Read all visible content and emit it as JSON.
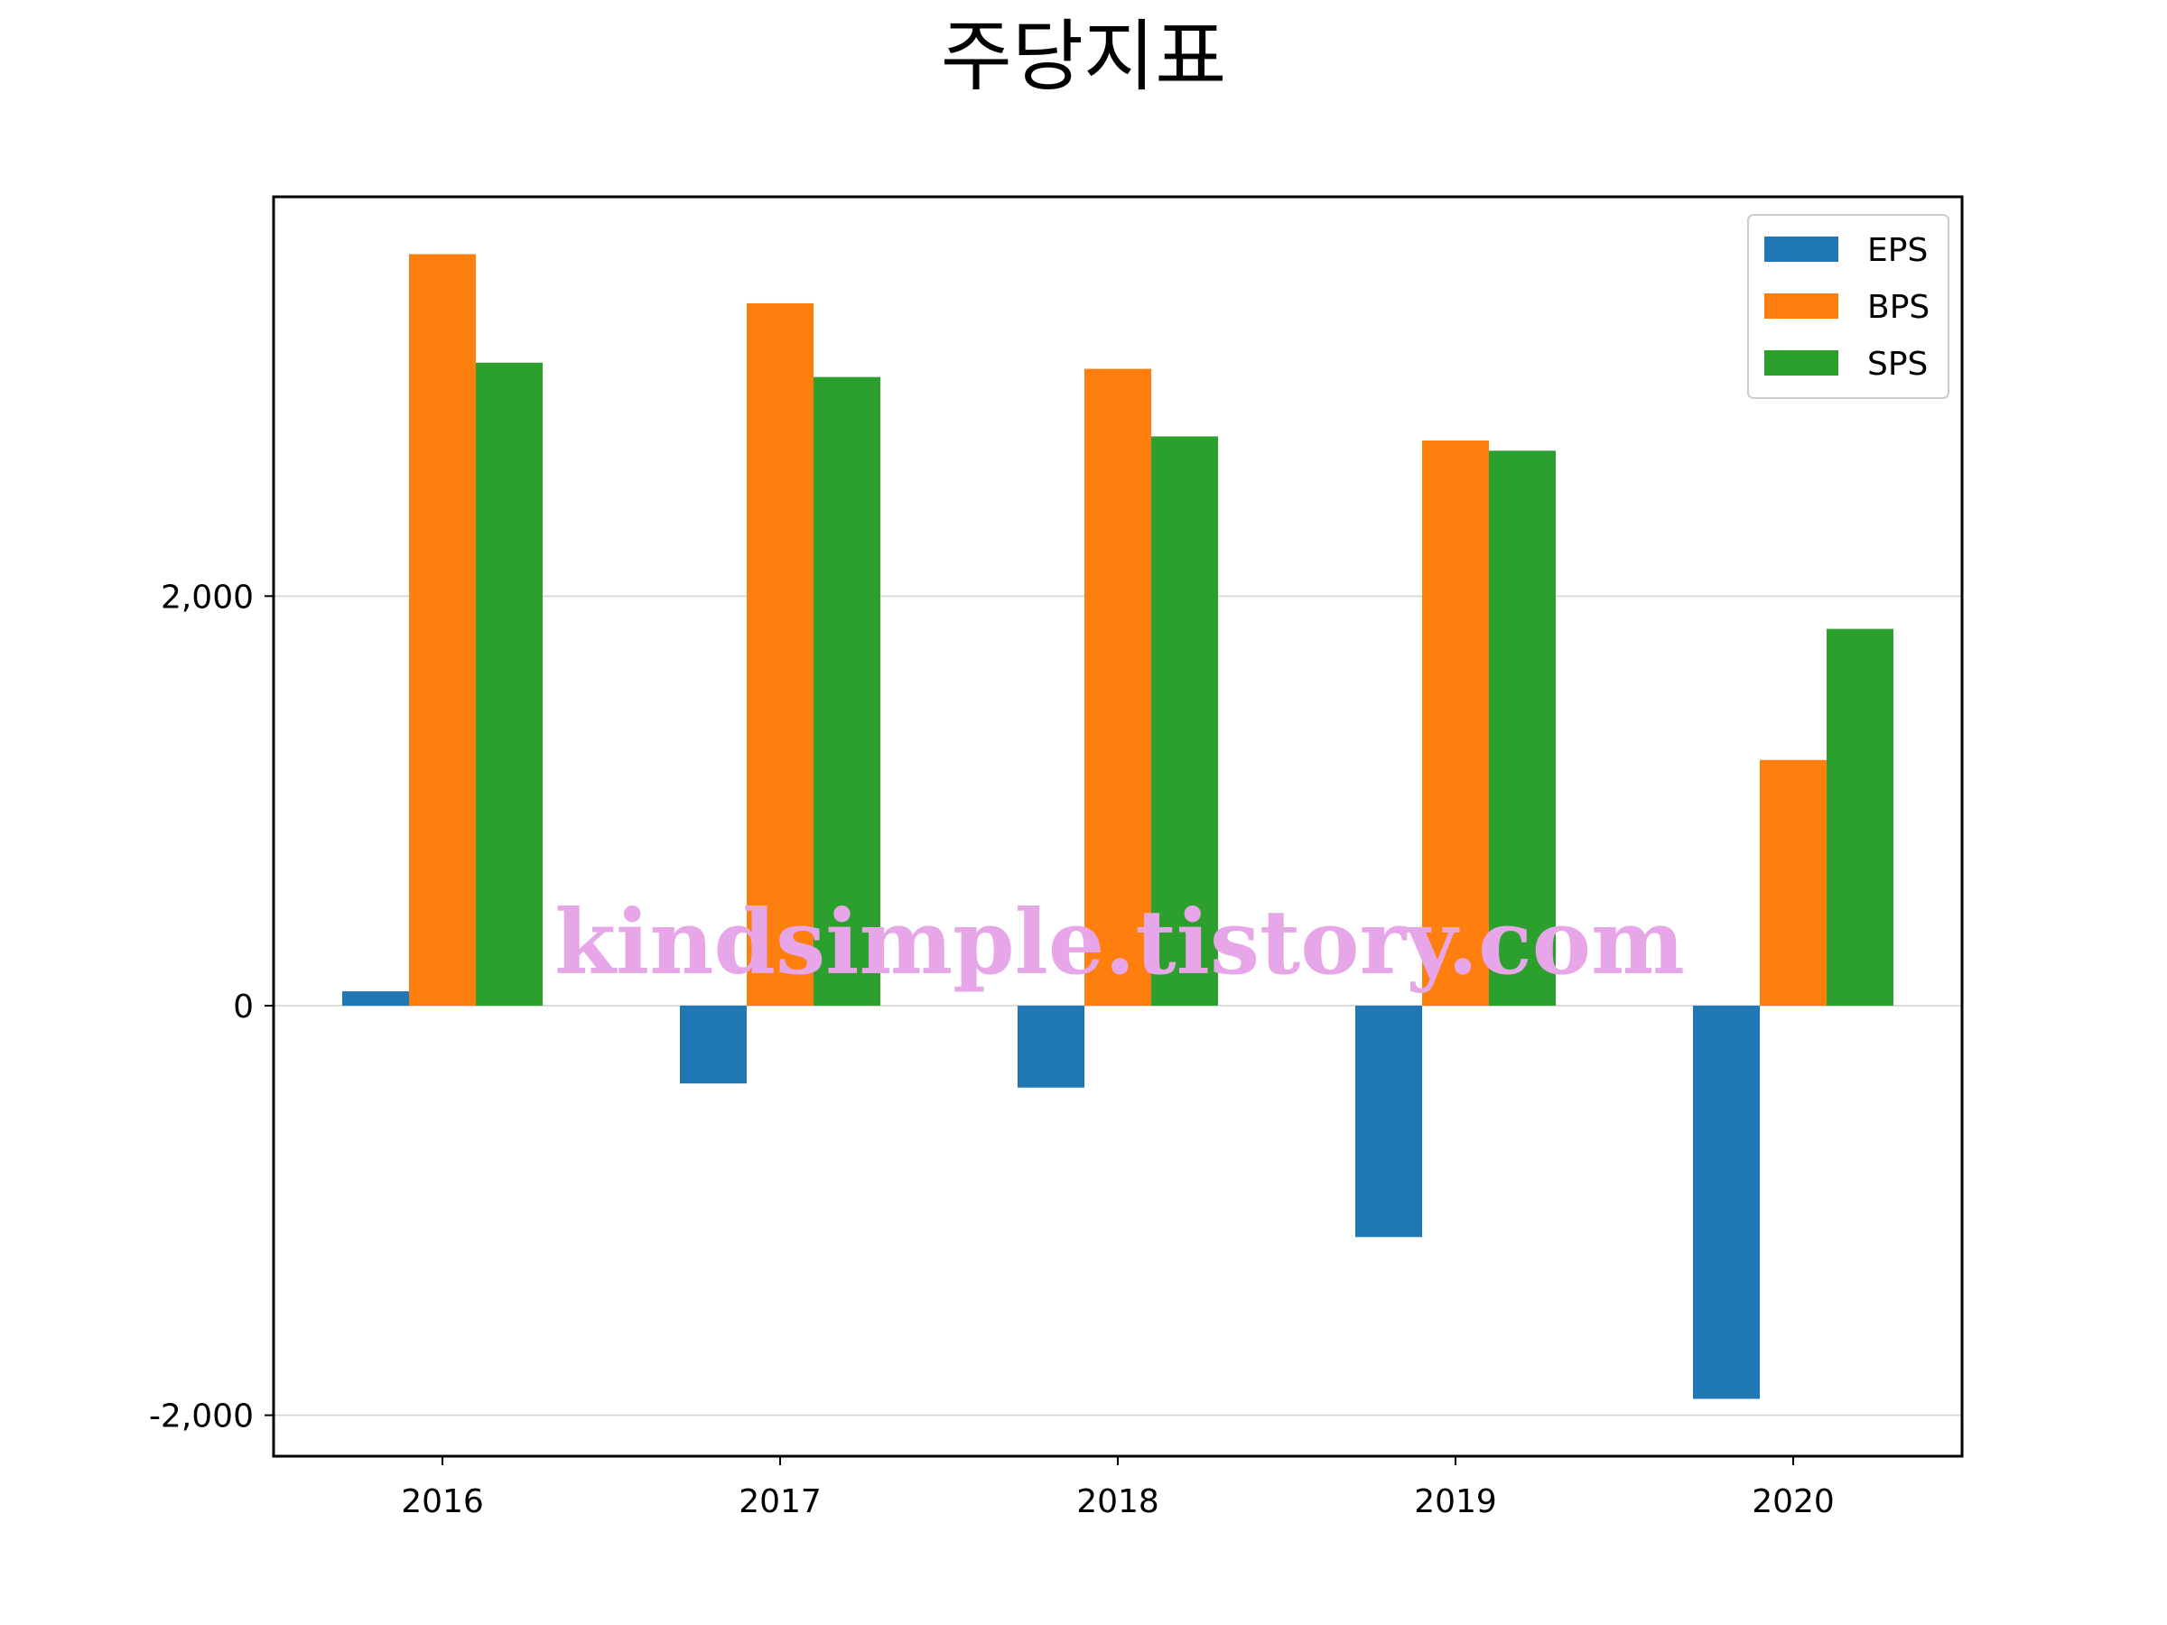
{
  "chart_data": {
    "type": "bar",
    "title": "주당지표",
    "xlabel": "",
    "ylabel": "",
    "categories": [
      "2016",
      "2017",
      "2018",
      "2019",
      "2020"
    ],
    "series": [
      {
        "name": "EPS",
        "color": "#1f77b4",
        "values": [
          70,
          -380,
          -400,
          -1130,
          -1920
        ]
      },
      {
        "name": "BPS",
        "color": "#ff7f0e",
        "values": [
          3670,
          3430,
          3110,
          2760,
          1200
        ]
      },
      {
        "name": "SPS",
        "color": "#2ca02c",
        "values": [
          3140,
          3070,
          2780,
          2710,
          1840
        ]
      }
    ],
    "yticks": [
      -2000,
      0,
      2000
    ],
    "ytick_labels": [
      "-2,000",
      "0",
      "2,000"
    ],
    "ylim": [
      -2200,
      3950
    ],
    "grid": "y",
    "legend": "top-right"
  },
  "watermark": {
    "text": "kindsimple.tistory.com",
    "color": "#e7a6e8"
  }
}
